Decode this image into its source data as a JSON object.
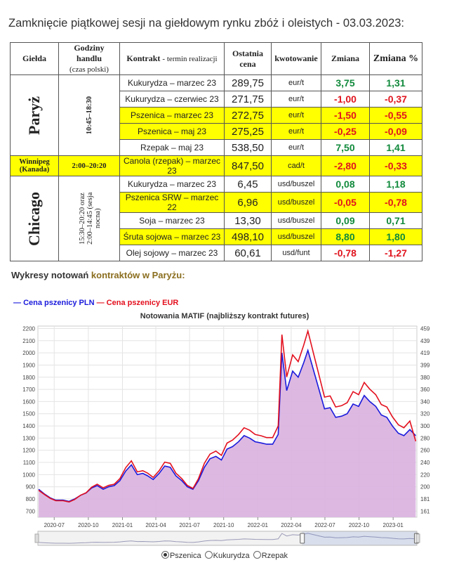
{
  "title": "Zamknięcie piątkowej sesji na giełdowym rynku zbóż i oleistych - 03.03.2023:",
  "table": {
    "headers": {
      "exchange": "Giełda",
      "hours": "Godziny handlu",
      "hours_sub": "(czas polski)",
      "contract": "Kontrakt",
      "contract_sub": "- termin realizacji",
      "price": "Ostatnia cena",
      "unit": "kwotowanie",
      "change": "Zmiana",
      "change_pct": "Zmiana %"
    },
    "groups": [
      {
        "exchange": "Paryż",
        "hours": "10:45–18:30",
        "rows": [
          {
            "contract": "Kukurydza – marzec 23",
            "price": "289,75",
            "unit": "eur/t",
            "change": "3,75",
            "change_pct": "1,31",
            "dir": "pos",
            "highlight": false
          },
          {
            "contract": "Kukurydza – czerwiec 23",
            "price": "271,75",
            "unit": "eur/t",
            "change": "-1,00",
            "change_pct": "-0,37",
            "dir": "neg",
            "highlight": false
          },
          {
            "contract": "Pszenica – marzec 23",
            "price": "272,75",
            "unit": "eur/t",
            "change": "-1,50",
            "change_pct": "-0,55",
            "dir": "neg",
            "highlight": true
          },
          {
            "contract": "Pszenica – maj 23",
            "price": "275,25",
            "unit": "eur/t",
            "change": "-0,25",
            "change_pct": "-0,09",
            "dir": "neg",
            "highlight": true
          },
          {
            "contract": "Rzepak – maj 23",
            "price": "538,50",
            "unit": "eur/t",
            "change": "7,50",
            "change_pct": "1,41",
            "dir": "pos",
            "highlight": false
          }
        ]
      },
      {
        "exchange": "Winnipeg",
        "exchange_sub": "(Kanada)",
        "hours": "2:00–20:20",
        "rows": [
          {
            "contract": "Canola (rzepak) – marzec 23",
            "price": "847,50",
            "unit": "cad/t",
            "change": "-2,80",
            "change_pct": "-0,33",
            "dir": "neg",
            "highlight": true
          }
        ]
      },
      {
        "exchange": "Chicago",
        "hours": "15:30–20:20 oraz 2:00–14:45 (sesja nocna)",
        "rows": [
          {
            "contract": "Kukurydza – marzec 23",
            "price": "6,45",
            "unit": "usd/buszel",
            "change": "0,08",
            "change_pct": "1,18",
            "dir": "pos",
            "highlight": false
          },
          {
            "contract": "Pszenica SRW – marzec 22",
            "price": "6,96",
            "unit": "usd/buszel",
            "change": "-0,05",
            "change_pct": "-0,78",
            "dir": "neg",
            "highlight": true
          },
          {
            "contract": "Soja – marzec 23",
            "price": "13,30",
            "unit": "usd/buszel",
            "change": "0,09",
            "change_pct": "0,71",
            "dir": "pos",
            "highlight": false
          },
          {
            "contract": "Śruta sojowa – marzec 23",
            "price": "498,10",
            "unit": "usd/buszel",
            "change": "8,80",
            "change_pct": "1,80",
            "dir": "pos",
            "highlight": true
          },
          {
            "contract": "Olej sojowy – marzec 23",
            "price": "60,61",
            "unit": "usd/funt",
            "change": "-0,78",
            "change_pct": "-1,27",
            "dir": "neg",
            "highlight": false
          }
        ]
      }
    ]
  },
  "chart_section": {
    "heading_plain": "Wykresy notowań ",
    "heading_accent": "kontraktów w Paryżu:"
  },
  "colors": {
    "pln": "#1a1adc",
    "eur": "#e3101e",
    "fill": "#d9b1df",
    "pos": "#118a3c",
    "neg": "#e0141e",
    "highlight": "#ffff00"
  },
  "chart_data": {
    "type": "line",
    "title": "Notowania MATIF (najbliższy kontrakt futures)",
    "legend": [
      "Cena pszenicy PLN",
      "Cena pszenicy EUR"
    ],
    "legend_position": "top-left",
    "y_left_ticks": [
      700,
      800,
      900,
      1000,
      1100,
      1200,
      1300,
      1400,
      1500,
      1600,
      1700,
      1800,
      1900,
      2000,
      2100,
      2200
    ],
    "y_right_ticks": [
      161,
      181,
      200,
      220,
      240,
      260,
      280,
      300,
      320,
      340,
      360,
      380,
      399,
      419,
      439,
      459
    ],
    "ylim_left": [
      650,
      2220
    ],
    "x_ticks": [
      "2020-07",
      "2020-10",
      "2021-01",
      "2021-04",
      "2021-07",
      "2021-10",
      "2022-01",
      "2022-04",
      "2022-07",
      "2022-10",
      "2023-01"
    ],
    "grid": true,
    "series": [
      {
        "name": "Cena pszenicy PLN",
        "x": [
          "2020-05-20",
          "2020-06-05",
          "2020-06-20",
          "2020-07-05",
          "2020-07-25",
          "2020-08-10",
          "2020-08-25",
          "2020-09-10",
          "2020-09-25",
          "2020-10-10",
          "2020-10-25",
          "2020-11-10",
          "2020-11-25",
          "2020-12-10",
          "2020-12-25",
          "2021-01-10",
          "2021-01-25",
          "2021-02-10",
          "2021-02-25",
          "2021-03-10",
          "2021-03-25",
          "2021-04-10",
          "2021-04-25",
          "2021-05-10",
          "2021-05-25",
          "2021-06-10",
          "2021-06-25",
          "2021-07-10",
          "2021-07-25",
          "2021-08-10",
          "2021-08-25",
          "2021-09-10",
          "2021-09-25",
          "2021-10-10",
          "2021-10-25",
          "2021-11-10",
          "2021-11-25",
          "2021-12-10",
          "2021-12-25",
          "2022-01-10",
          "2022-01-25",
          "2022-02-10",
          "2022-02-25",
          "2022-03-07",
          "2022-03-20",
          "2022-04-05",
          "2022-04-20",
          "2022-05-05",
          "2022-05-16",
          "2022-05-30",
          "2022-06-15",
          "2022-06-30",
          "2022-07-15",
          "2022-07-30",
          "2022-08-15",
          "2022-08-30",
          "2022-09-15",
          "2022-09-30",
          "2022-10-15",
          "2022-10-30",
          "2022-11-15",
          "2022-11-30",
          "2022-12-15",
          "2022-12-30",
          "2023-01-15",
          "2023-01-30",
          "2023-02-15",
          "2023-03-03"
        ],
        "y": [
          880,
          840,
          810,
          790,
          790,
          780,
          800,
          830,
          850,
          890,
          910,
          880,
          900,
          910,
          950,
          1030,
          1080,
          1000,
          1010,
          990,
          960,
          1010,
          1070,
          1060,
          990,
          950,
          900,
          880,
          950,
          1060,
          1130,
          1150,
          1120,
          1210,
          1230,
          1270,
          1320,
          1300,
          1270,
          1260,
          1250,
          1250,
          1330,
          2000,
          1690,
          1850,
          1800,
          1920,
          2020,
          1870,
          1700,
          1540,
          1550,
          1470,
          1480,
          1500,
          1580,
          1560,
          1650,
          1600,
          1560,
          1490,
          1470,
          1400,
          1340,
          1320,
          1370,
          1320
        ]
      },
      {
        "name": "Cena pszenicy EUR",
        "x": [
          "2020-05-20",
          "2020-06-05",
          "2020-06-20",
          "2020-07-05",
          "2020-07-25",
          "2020-08-10",
          "2020-08-25",
          "2020-09-10",
          "2020-09-25",
          "2020-10-10",
          "2020-10-25",
          "2020-11-10",
          "2020-11-25",
          "2020-12-10",
          "2020-12-25",
          "2021-01-10",
          "2021-01-25",
          "2021-02-10",
          "2021-02-25",
          "2021-03-10",
          "2021-03-25",
          "2021-04-10",
          "2021-04-25",
          "2021-05-10",
          "2021-05-25",
          "2021-06-10",
          "2021-06-25",
          "2021-07-10",
          "2021-07-25",
          "2021-08-10",
          "2021-08-25",
          "2021-09-10",
          "2021-09-25",
          "2021-10-10",
          "2021-10-25",
          "2021-11-10",
          "2021-11-25",
          "2021-12-10",
          "2021-12-25",
          "2022-01-10",
          "2022-01-25",
          "2022-02-10",
          "2022-02-25",
          "2022-03-07",
          "2022-03-20",
          "2022-04-05",
          "2022-04-20",
          "2022-05-05",
          "2022-05-16",
          "2022-05-30",
          "2022-06-15",
          "2022-06-30",
          "2022-07-15",
          "2022-07-30",
          "2022-08-15",
          "2022-08-30",
          "2022-09-15",
          "2022-09-30",
          "2022-10-15",
          "2022-10-30",
          "2022-11-15",
          "2022-11-30",
          "2022-12-15",
          "2022-12-30",
          "2023-01-15",
          "2023-01-30",
          "2023-02-15",
          "2023-03-03"
        ],
        "y": [
          195,
          188,
          182,
          178,
          178,
          176,
          180,
          187,
          191,
          200,
          205,
          199,
          203,
          205,
          214,
          232,
          243,
          225,
          227,
          223,
          216,
          227,
          241,
          239,
          223,
          214,
          203,
          198,
          214,
          239,
          254,
          259,
          252,
          272,
          277,
          286,
          297,
          293,
          286,
          284,
          281,
          281,
          300,
          449,
          380,
          416,
          405,
          432,
          455,
          421,
          383,
          347,
          349,
          331,
          333,
          338,
          356,
          351,
          371,
          360,
          351,
          335,
          331,
          315,
          302,
          297,
          308,
          275
        ]
      }
    ]
  },
  "navigator": {
    "range_from": "2022-05",
    "range_to": "2023-03"
  },
  "radio_options": [
    {
      "label": "Pszenica",
      "selected": true
    },
    {
      "label": "Kukurydza",
      "selected": false
    },
    {
      "label": "Rzepak",
      "selected": false
    }
  ]
}
